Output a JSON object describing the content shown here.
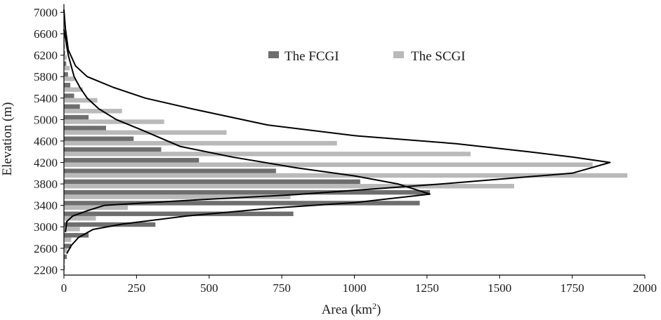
{
  "chart_data": {
    "type": "bar",
    "orientation": "horizontal",
    "xlabel": "Area (km",
    "xlabel_sup": "2",
    "xlabel_close": ")",
    "ylabel": "Elevation (m)",
    "xlim": [
      0,
      2000
    ],
    "ylim": [
      2100,
      7150
    ],
    "x_ticks": [
      "0",
      "250",
      "500",
      "750",
      "1000",
      "1250",
      "1500",
      "1750",
      "2000"
    ],
    "y_ticks": [
      "2200",
      "2600",
      "3000",
      "3400",
      "3800",
      "4200",
      "4600",
      "5000",
      "5400",
      "5800",
      "6200",
      "6600",
      "7000"
    ],
    "legend_position": "top-right",
    "colors": {
      "fcgi": "#6e6e6e",
      "scgi": "#b9b9b9",
      "curve": "#000000"
    },
    "elevations": [
      2200,
      2400,
      2600,
      2800,
      3000,
      3200,
      3400,
      3600,
      3800,
      4000,
      4200,
      4400,
      4600,
      4800,
      5000,
      5200,
      5400,
      5600,
      5800,
      6000,
      6200,
      6400,
      6600,
      6800,
      7000
    ],
    "series": [
      {
        "name": "The FCGI",
        "values": [
          3,
          10,
          25,
          85,
          315,
          790,
          1225,
          1260,
          1020,
          730,
          465,
          335,
          240,
          145,
          85,
          55,
          35,
          22,
          14,
          8,
          4,
          2,
          1,
          0,
          0
        ]
      },
      {
        "name": "The SCGI",
        "values": [
          1,
          4,
          12,
          25,
          55,
          110,
          220,
          780,
          1550,
          1940,
          1820,
          1400,
          940,
          560,
          345,
          200,
          115,
          65,
          38,
          20,
          10,
          5,
          2,
          1,
          0
        ]
      }
    ],
    "curves": [
      {
        "points": [
          [
            0,
            6680
          ],
          [
            15,
            6200
          ],
          [
            35,
            5800
          ],
          [
            55,
            5600
          ],
          [
            80,
            5400
          ],
          [
            120,
            5200
          ],
          [
            180,
            5000
          ],
          [
            270,
            4800
          ],
          [
            400,
            4500
          ],
          [
            580,
            4300
          ],
          [
            800,
            4100
          ],
          [
            1000,
            3950
          ],
          [
            1150,
            3800
          ],
          [
            1260,
            3610
          ],
          [
            1000,
            3450
          ],
          [
            720,
            3350
          ],
          [
            420,
            3200
          ],
          [
            200,
            3050
          ],
          [
            100,
            2950
          ],
          [
            50,
            2800
          ],
          [
            25,
            2650
          ],
          [
            10,
            2500
          ]
        ]
      },
      {
        "points": [
          [
            0,
            7050
          ],
          [
            5,
            6700
          ],
          [
            15,
            6300
          ],
          [
            40,
            6000
          ],
          [
            80,
            5800
          ],
          [
            170,
            5600
          ],
          [
            280,
            5400
          ],
          [
            440,
            5200
          ],
          [
            700,
            4900
          ],
          [
            1000,
            4700
          ],
          [
            1350,
            4550
          ],
          [
            1600,
            4400
          ],
          [
            1750,
            4300
          ],
          [
            1880,
            4200
          ],
          [
            1750,
            4000
          ],
          [
            1300,
            3800
          ],
          [
            800,
            3600
          ],
          [
            450,
            3500
          ],
          [
            140,
            3400
          ],
          [
            80,
            3300
          ],
          [
            30,
            3200
          ],
          [
            10,
            3100
          ],
          [
            5,
            2900
          ]
        ]
      }
    ]
  }
}
